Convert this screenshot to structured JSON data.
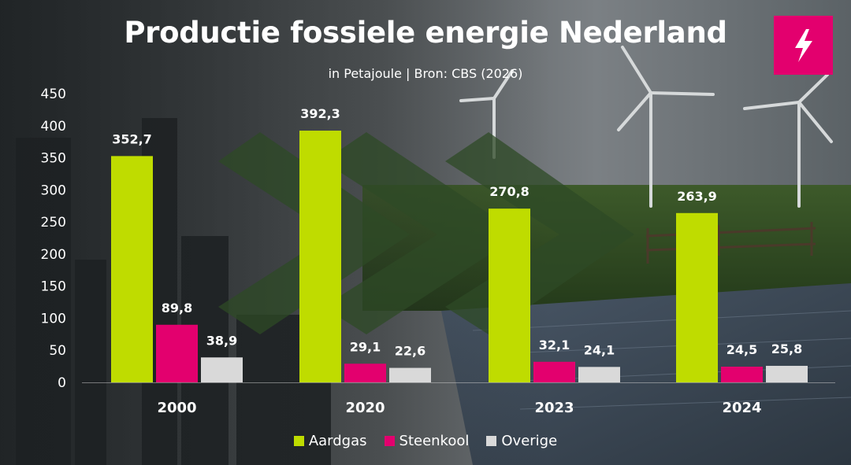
{
  "title": "Productie fossiele energie Nederland",
  "subtitle": "in Petajoule | Bron: CBS (2026)",
  "logo_icon": "lightning-bolt-icon",
  "colors": {
    "aardgas": "#bfdc00",
    "steenkool": "#e3006e",
    "overige": "#d9d9d9",
    "logo": "#e3006e"
  },
  "chart_data": {
    "type": "bar",
    "title": "Productie fossiele energie Nederland",
    "subtitle": "in Petajoule | Bron: CBS (2026)",
    "categories": [
      "2000",
      "2020",
      "2023",
      "2024"
    ],
    "series": [
      {
        "name": "Aardgas",
        "values": [
          352.7,
          392.3,
          270.8,
          263.9
        ],
        "labels": [
          "352,7",
          "392,3",
          "270,8",
          "263,9"
        ],
        "color": "#bfdc00"
      },
      {
        "name": "Steenkool",
        "values": [
          89.8,
          29.1,
          32.1,
          24.5
        ],
        "labels": [
          "89,8",
          "29,1",
          "32,1",
          "24,5"
        ],
        "color": "#e3006e"
      },
      {
        "name": "Overige",
        "values": [
          38.9,
          22.6,
          24.1,
          25.8
        ],
        "labels": [
          "38,9",
          "22,6",
          "24,1",
          "25,8"
        ],
        "color": "#d9d9d9"
      }
    ],
    "ylim": [
      0,
      450
    ],
    "yticks": [
      "0",
      "50",
      "100",
      "150",
      "200",
      "250",
      "300",
      "350",
      "400",
      "450"
    ],
    "grid": false,
    "legend_position": "bottom"
  }
}
